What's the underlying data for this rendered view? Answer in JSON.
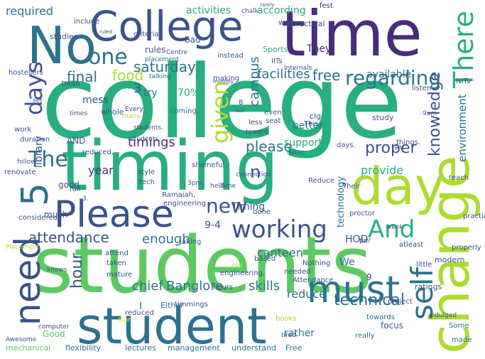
{
  "palette": {
    "purple": "#440154",
    "indigo": "#472d7b",
    "blue": "#3b528b",
    "teal": "#2c728e",
    "cyan": "#21918c",
    "green": "#28ae80",
    "light_green": "#5ec962",
    "lime": "#addc30",
    "yellow": "#fde725",
    "bg": "#ffffff"
  },
  "words": {
    "college": "college",
    "students": "students",
    "timing": "timing",
    "time": "time",
    "College": "College",
    "No": "No",
    "student": "student",
    "change": "change",
    "day": "day",
    "Please": "Please",
    "need": "need",
    "must": "must",
    "five": "5",
    "working": "working",
    "self": "self",
    "And": "And",
    "There": "There",
    "one": "one",
    "days": "days",
    "regarding": "regarding",
    "knowledge": "knowledge",
    "given": "given",
    "The": "The",
    "technical": "technical",
    "proper": "proper",
    "please": "please",
    "saturday": "saturday",
    "campus": "campus",
    "new": "new",
    "final": "final",
    "food": "food",
    "facilities": "facilities",
    "free": "free",
    "attendance": "attendance",
    "timings": "timings",
    "Banglore": "Banglore.",
    "enough": "enough",
    "hour": "hour",
    "n": "n",
    "provide": "provide",
    "canteen": "canteen",
    "reduce": "reduce",
    "skills": "skills",
    "chief": "chief",
    "year": "year",
    "seventy": "70%",
    "three": "3",
    "environment": "environment",
    "required": "required",
    "according": "according",
    "activities": "activities",
    "available": "available",
    "support": "support",
    "technology": "technology",
    "rather": "rather",
    "mess": "mess",
    "library": "library",
    "try": "try",
    "HOD": "HOD",
    "Timing": "Timing",
    "nineFour": "9-4",
    "will": "will",
    "much": "much",
    "good": "good",
    "They": "They",
    "We": "We",
    "better": "better",
    "Our": "Our",
    "I": "I",
    "lectures": "lectures",
    "management": "management",
    "understand": "understand",
    "Free": "Free",
    "flexibility": "flexibility",
    "mechanical": "mechanical",
    "towards": "towards",
    "really": "really",
    "focus": "focus",
    "ratings": "ratings",
    "modern": "modern",
    "practical": "practical",
    "way": "way",
    "rules": "rules",
    "bad": "bad",
    "studies": "studies",
    "Sports": "Sports",
    "IITs": "IITs",
    "instead": "instead",
    "Dean": "Dean",
    "AND": "AND",
    "whole": "whole",
    "Every": "Every",
    "many": "many",
    "chalk": "chalk",
    "criteria": "criteria",
    "include": "include",
    "rarely": "rarely",
    "fest": "fest",
    "placement": "placement",
    "Placement": "Placement",
    "talking": "talking",
    "making": "making",
    "coming": "coming",
    "even": "even",
    "less": "less",
    "seat": "seat",
    "clg": "clg",
    "This": "This",
    "study": "study",
    "days2": "days.",
    "things": "things.",
    "toward": "toward",
    "duration": "duration",
    "reduced": "reduced,",
    "work": "work",
    "times": "times",
    "Time": "Time",
    "held": "held",
    "students2": "students.",
    "shameful": "shameful.",
    "Ramaiah": "Ramaiah,",
    "engineering": "engineering",
    "connection": "connection",
    "Reduce": "Reduce",
    "Their": "Their",
    "teach": "teach",
    "practically": "practically",
    "properly": "properly",
    "atleast": "atleast",
    "little": "little",
    "week": "week",
    "proctor": "proctor",
    "per": "per",
    "Nothing": "Nothing",
    "based": "based",
    "taking": "taking",
    "considered": "considered",
    "full": "full",
    "renovate": "renovate",
    "follow": "follow",
    "hostellers": "hostellers",
    "Either": "Either",
    "computer": "computer",
    "Awesome": "Awesome",
    "knows": "knows",
    "attend": "attend",
    "taken": "taken",
    "mature": "mature",
    "timmings": "timmings",
    "engineering2": "engineering,",
    "hours": "hours",
    "needed": "needed",
    "Attendance": "Attendance",
    "project": "project",
    "indulged": "indulged",
    "Some": "Some",
    "made": "made",
    "books": "books",
    "tired": "tired",
    "nine": "9",
    "eight": "8",
    "threepm": "3pm.",
    "set": "set",
    "nineam": "-9am",
    "listen": "listen",
    "NITs": "NITs",
    "Internals": "Internals",
    "done": "done",
    "old": "old",
    "Good": "Good",
    "reduced2": "reduced",
    "style": "style",
    "tech": "tech",
    "ruled": "ruled",
    "three2": "3.",
    "RV": "RV",
    "Centre": "Centre",
    "restricted": "restrict",
    "fact": "fact",
    "monthly": "monthly",
    "ellipsis": "...",
    "students3": "students."
  }
}
